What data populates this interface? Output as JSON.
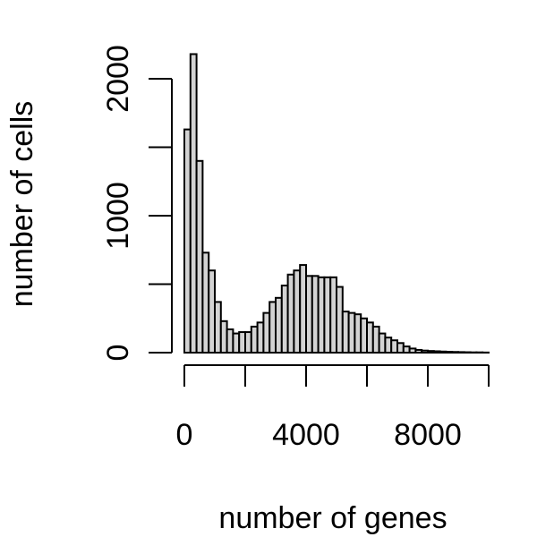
{
  "chart_data": {
    "type": "bar",
    "title": "",
    "xlabel": "number of genes",
    "ylabel": "number of cells",
    "bin_width": 200,
    "bin_start": 0,
    "values": [
      1630,
      2180,
      1400,
      730,
      600,
      370,
      230,
      170,
      140,
      150,
      150,
      190,
      220,
      290,
      370,
      400,
      490,
      570,
      600,
      640,
      560,
      560,
      550,
      550,
      550,
      480,
      300,
      290,
      280,
      250,
      220,
      190,
      140,
      110,
      90,
      70,
      45,
      30,
      20,
      15,
      12,
      10,
      8,
      6,
      5,
      4,
      3,
      2,
      2,
      1
    ],
    "xlim": [
      0,
      10000
    ],
    "ylim": [
      0,
      2000
    ],
    "x_ticks": [
      0,
      2000,
      4000,
      6000,
      8000,
      10000
    ],
    "x_tick_labels": [
      "0",
      "",
      "4000",
      "",
      "8000",
      ""
    ],
    "y_ticks": [
      0,
      500,
      1000,
      1500,
      2000
    ],
    "y_tick_labels": [
      "0",
      "",
      "1000",
      "",
      "2000"
    ],
    "grid": false,
    "bar_fill": "#d3d3d3",
    "bar_stroke": "#000000"
  }
}
